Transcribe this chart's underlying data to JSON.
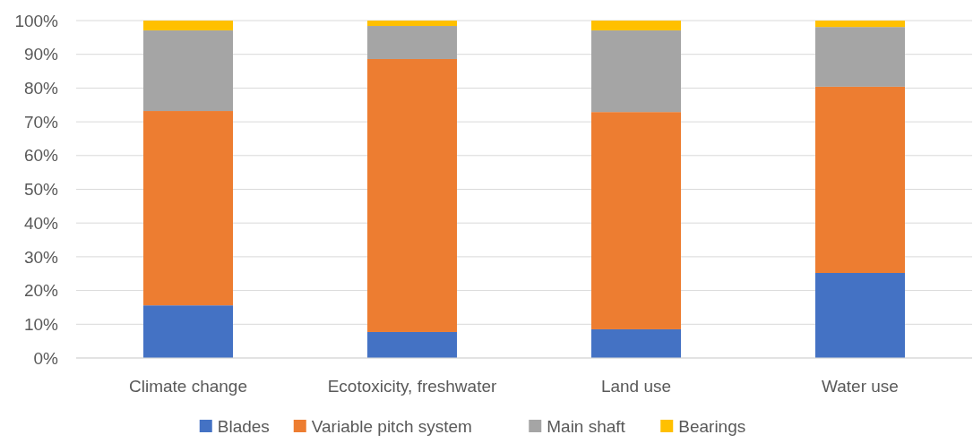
{
  "chart_data": {
    "type": "bar",
    "stacked": true,
    "categories": [
      "Climate change",
      "Ecotoxicity, freshwater",
      "Land use",
      "Water use"
    ],
    "series": [
      {
        "name": "Blades",
        "color": "#4472c4",
        "values": [
          15.6,
          7.7,
          8.5,
          25.2
        ]
      },
      {
        "name": "Variable pitch system",
        "color": "#ed7d31",
        "values": [
          57.6,
          80.9,
          64.4,
          55.2
        ]
      },
      {
        "name": "Main shaft",
        "color": "#a5a5a5",
        "values": [
          23.9,
          9.8,
          24.2,
          17.7
        ]
      },
      {
        "name": "Bearings",
        "color": "#ffc000",
        "values": [
          2.9,
          1.6,
          2.9,
          1.9
        ]
      }
    ],
    "ylim": [
      0,
      100
    ],
    "yticks": [
      {
        "value": 0,
        "label": "0%"
      },
      {
        "value": 10,
        "label": "10%"
      },
      {
        "value": 20,
        "label": "20%"
      },
      {
        "value": 30,
        "label": "30%"
      },
      {
        "value": 40,
        "label": "40%"
      },
      {
        "value": 50,
        "label": "50%"
      },
      {
        "value": 60,
        "label": "60%"
      },
      {
        "value": 70,
        "label": "70%"
      },
      {
        "value": 80,
        "label": "80%"
      },
      {
        "value": 90,
        "label": "90%"
      },
      {
        "value": 100,
        "label": "100%"
      }
    ],
    "grid": "y",
    "legend": "bottom"
  }
}
